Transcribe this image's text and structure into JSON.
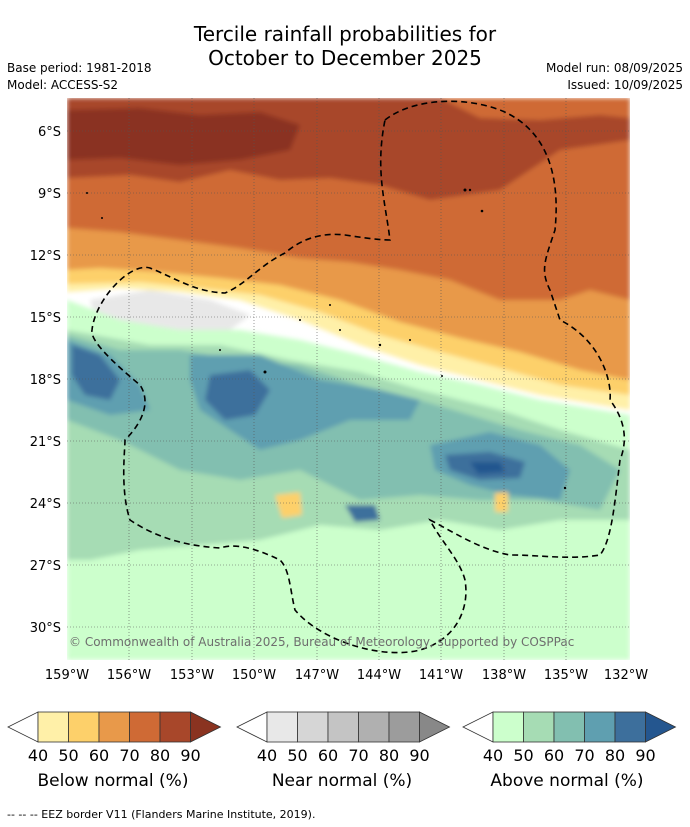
{
  "title_line1": "Tercile rainfall probabilities for",
  "title_line2": "October to December 2025",
  "base_period": "Base period: 1981-2018",
  "model": "Model: ACCESS-S2",
  "model_run": "Model run: 08/09/2025",
  "issued": "Issued: 10/09/2025",
  "copyright": "© Commonwealth of Australia 2025, Bureau of Meteorology, supported by COSPPac",
  "lat_labels": [
    "6°S",
    "9°S",
    "12°S",
    "15°S",
    "18°S",
    "21°S",
    "24°S",
    "27°S",
    "30°S"
  ],
  "lon_labels": [
    "159°W",
    "156°W",
    "153°W",
    "150°W",
    "147°W",
    "144°W",
    "141°W",
    "138°W",
    "135°W",
    "132°W"
  ],
  "colors": {
    "below": [
      "#ffffff",
      "#fff0a8",
      "#fdd06a",
      "#e8994a",
      "#cf6a35",
      "#a8472a",
      "#8a3320"
    ],
    "near": [
      "#ffffff",
      "#e8e8e8",
      "#d6d6d6",
      "#c4c4c4",
      "#b0b0b0",
      "#9c9c9c",
      "#888888"
    ],
    "above": [
      "#ffffff",
      "#ccffcc",
      "#a6dcb4",
      "#82bfb0",
      "#5f9fb0",
      "#3d6f9c",
      "#24568f"
    ]
  },
  "legends": [
    {
      "name": "Below normal (%)",
      "ticks": [
        "40",
        "50",
        "60",
        "70",
        "80",
        "90"
      ]
    },
    {
      "name": "Near normal (%)",
      "ticks": [
        "40",
        "50",
        "60",
        "70",
        "80",
        "90"
      ]
    },
    {
      "name": "Above normal (%)",
      "ticks": [
        "40",
        "50",
        "60",
        "70",
        "80",
        "90"
      ]
    }
  ],
  "footnote": "--  --  -- EEZ border V11 (Flanders Marine Institute, 2019)."
}
